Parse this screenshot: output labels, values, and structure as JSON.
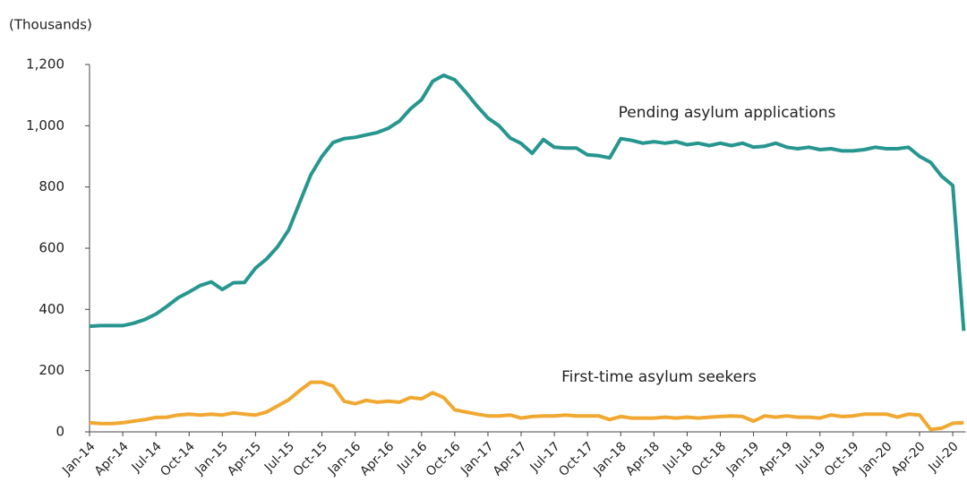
{
  "chart_data": {
    "type": "line",
    "ylabel": "(Thousands)",
    "categories": [
      "Jan-14",
      null,
      null,
      "Apr-14",
      null,
      null,
      "Jul-14",
      null,
      null,
      "Oct-14",
      null,
      null,
      "Jan-15",
      null,
      null,
      "Apr-15",
      null,
      null,
      "Jul-15",
      null,
      null,
      "Oct-15",
      null,
      null,
      "Jan-16",
      null,
      null,
      "Apr-16",
      null,
      null,
      "Jul-16",
      null,
      null,
      "Oct-16",
      null,
      null,
      "Jan-17",
      null,
      null,
      "Apr-17",
      null,
      null,
      "Jul-17",
      null,
      null,
      "Oct-17",
      null,
      null,
      "Jan-18",
      null,
      null,
      "Apr-18",
      null,
      null,
      "Jul-18",
      null,
      null,
      "Oct-18",
      null,
      null,
      "Jan-19",
      null,
      null,
      "Apr-19",
      null,
      null,
      "Jul-19",
      null,
      null,
      "Oct-19",
      null,
      null,
      "Jan-20",
      null,
      null,
      "Apr-20",
      null,
      null,
      "Jul-20",
      null
    ],
    "series": [
      {
        "name": "Pending asylum applications",
        "color": "#26968f",
        "values": [
          345,
          347,
          347,
          347,
          355,
          367,
          385,
          410,
          438,
          457,
          478,
          490,
          465,
          487,
          488,
          535,
          565,
          605,
          660,
          750,
          840,
          900,
          945,
          958,
          962,
          970,
          978,
          992,
          1015,
          1055,
          1085,
          1145,
          1165,
          1150,
          1110,
          1065,
          1025,
          1000,
          960,
          942,
          910,
          955,
          930,
          927,
          927,
          905,
          902,
          895,
          958,
          952,
          943,
          948,
          943,
          948,
          938,
          943,
          935,
          943,
          935,
          943,
          930,
          933,
          943,
          930,
          925,
          930,
          922,
          925,
          918,
          918,
          922,
          930,
          925,
          925,
          930,
          900,
          880,
          835,
          805,
          330
        ]
      },
      {
        "name": "First-time asylum seekers",
        "color": "#f0a830",
        "values": [
          30,
          27,
          27,
          30,
          35,
          40,
          47,
          48,
          55,
          58,
          55,
          58,
          55,
          62,
          58,
          55,
          65,
          85,
          105,
          135,
          162,
          162,
          150,
          100,
          92,
          103,
          97,
          100,
          97,
          112,
          108,
          128,
          112,
          72,
          65,
          58,
          52,
          52,
          55,
          45,
          50,
          52,
          52,
          55,
          52,
          52,
          52,
          40,
          50,
          45,
          45,
          45,
          48,
          45,
          48,
          45,
          48,
          50,
          52,
          50,
          35,
          52,
          48,
          52,
          48,
          48,
          45,
          55,
          50,
          52,
          58,
          58,
          58,
          48,
          58,
          55,
          8,
          12,
          28,
          30
        ]
      }
    ],
    "ylim": [
      0,
      1200
    ],
    "yticks": [
      0,
      200,
      400,
      600,
      800,
      {
        "value": 1000,
        "label": "1,000"
      },
      {
        "value": 1200,
        "label": "1,200"
      }
    ],
    "grid": false
  }
}
